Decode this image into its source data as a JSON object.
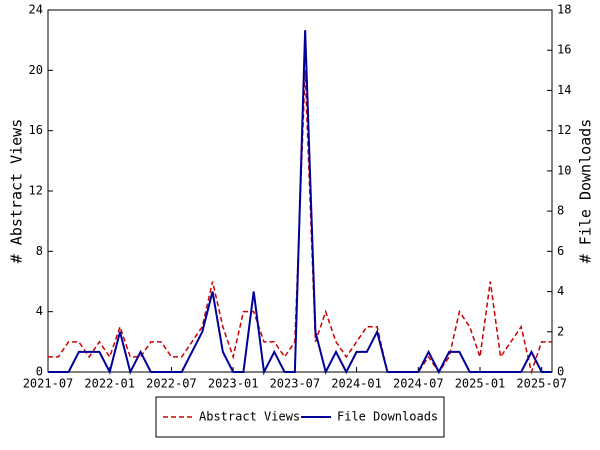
{
  "chart_data": {
    "type": "line",
    "x": [
      "2021-07",
      "2021-08",
      "2021-09",
      "2021-10",
      "2021-11",
      "2021-12",
      "2022-01",
      "2022-02",
      "2022-03",
      "2022-04",
      "2022-05",
      "2022-06",
      "2022-07",
      "2022-08",
      "2022-09",
      "2022-10",
      "2022-11",
      "2022-12",
      "2023-01",
      "2023-02",
      "2023-03",
      "2023-04",
      "2023-05",
      "2023-06",
      "2023-07",
      "2023-08",
      "2023-09",
      "2023-10",
      "2023-11",
      "2023-12",
      "2024-01",
      "2024-02",
      "2024-03",
      "2024-04",
      "2024-05",
      "2024-06",
      "2024-07",
      "2024-08",
      "2024-09",
      "2024-10",
      "2024-11",
      "2024-12",
      "2025-01",
      "2025-02",
      "2025-03",
      "2025-04",
      "2025-05",
      "2025-06",
      "2025-07",
      "2025-08"
    ],
    "xticks": [
      "2021-07",
      "2022-01",
      "2022-07",
      "2023-01",
      "2023-07",
      "2024-01",
      "2024-07",
      "2025-01",
      "2025-07"
    ],
    "ylabel": "# Abstract Views",
    "y2label": "# File Downloads",
    "ylim": [
      0,
      24
    ],
    "yticks": [
      0,
      4,
      8,
      12,
      16,
      20,
      24
    ],
    "y2lim": [
      0,
      18
    ],
    "y2ticks": [
      0,
      2,
      4,
      6,
      8,
      10,
      12,
      14,
      16,
      18
    ],
    "legend": "bottom",
    "series": [
      {
        "name": "Abstract Views",
        "color": "#cc0000",
        "dashed": true,
        "values": [
          1,
          1,
          2,
          2,
          1,
          2,
          1,
          3,
          1,
          1,
          2,
          2,
          1,
          1,
          2,
          3,
          6,
          3,
          1,
          4,
          4,
          2,
          2,
          1,
          2,
          20,
          2,
          4,
          2,
          1,
          2,
          3,
          3,
          0,
          0,
          0,
          0,
          1,
          0,
          1,
          4,
          3,
          1,
          6,
          1,
          2,
          3,
          0,
          2,
          2
        ]
      },
      {
        "name": "File Downloads",
        "color": "#000099",
        "dashed": false,
        "axis": "y2",
        "values": [
          0,
          0,
          0,
          1,
          1,
          1,
          0,
          2,
          0,
          1,
          0,
          0,
          0,
          0,
          1,
          2,
          4,
          1,
          0,
          0,
          4,
          0,
          1,
          0,
          0,
          17,
          2,
          0,
          1,
          0,
          1,
          1,
          2,
          0,
          0,
          0,
          0,
          1,
          0,
          1,
          1,
          0,
          0,
          0,
          0,
          0,
          0,
          1,
          0,
          0
        ]
      }
    ]
  }
}
